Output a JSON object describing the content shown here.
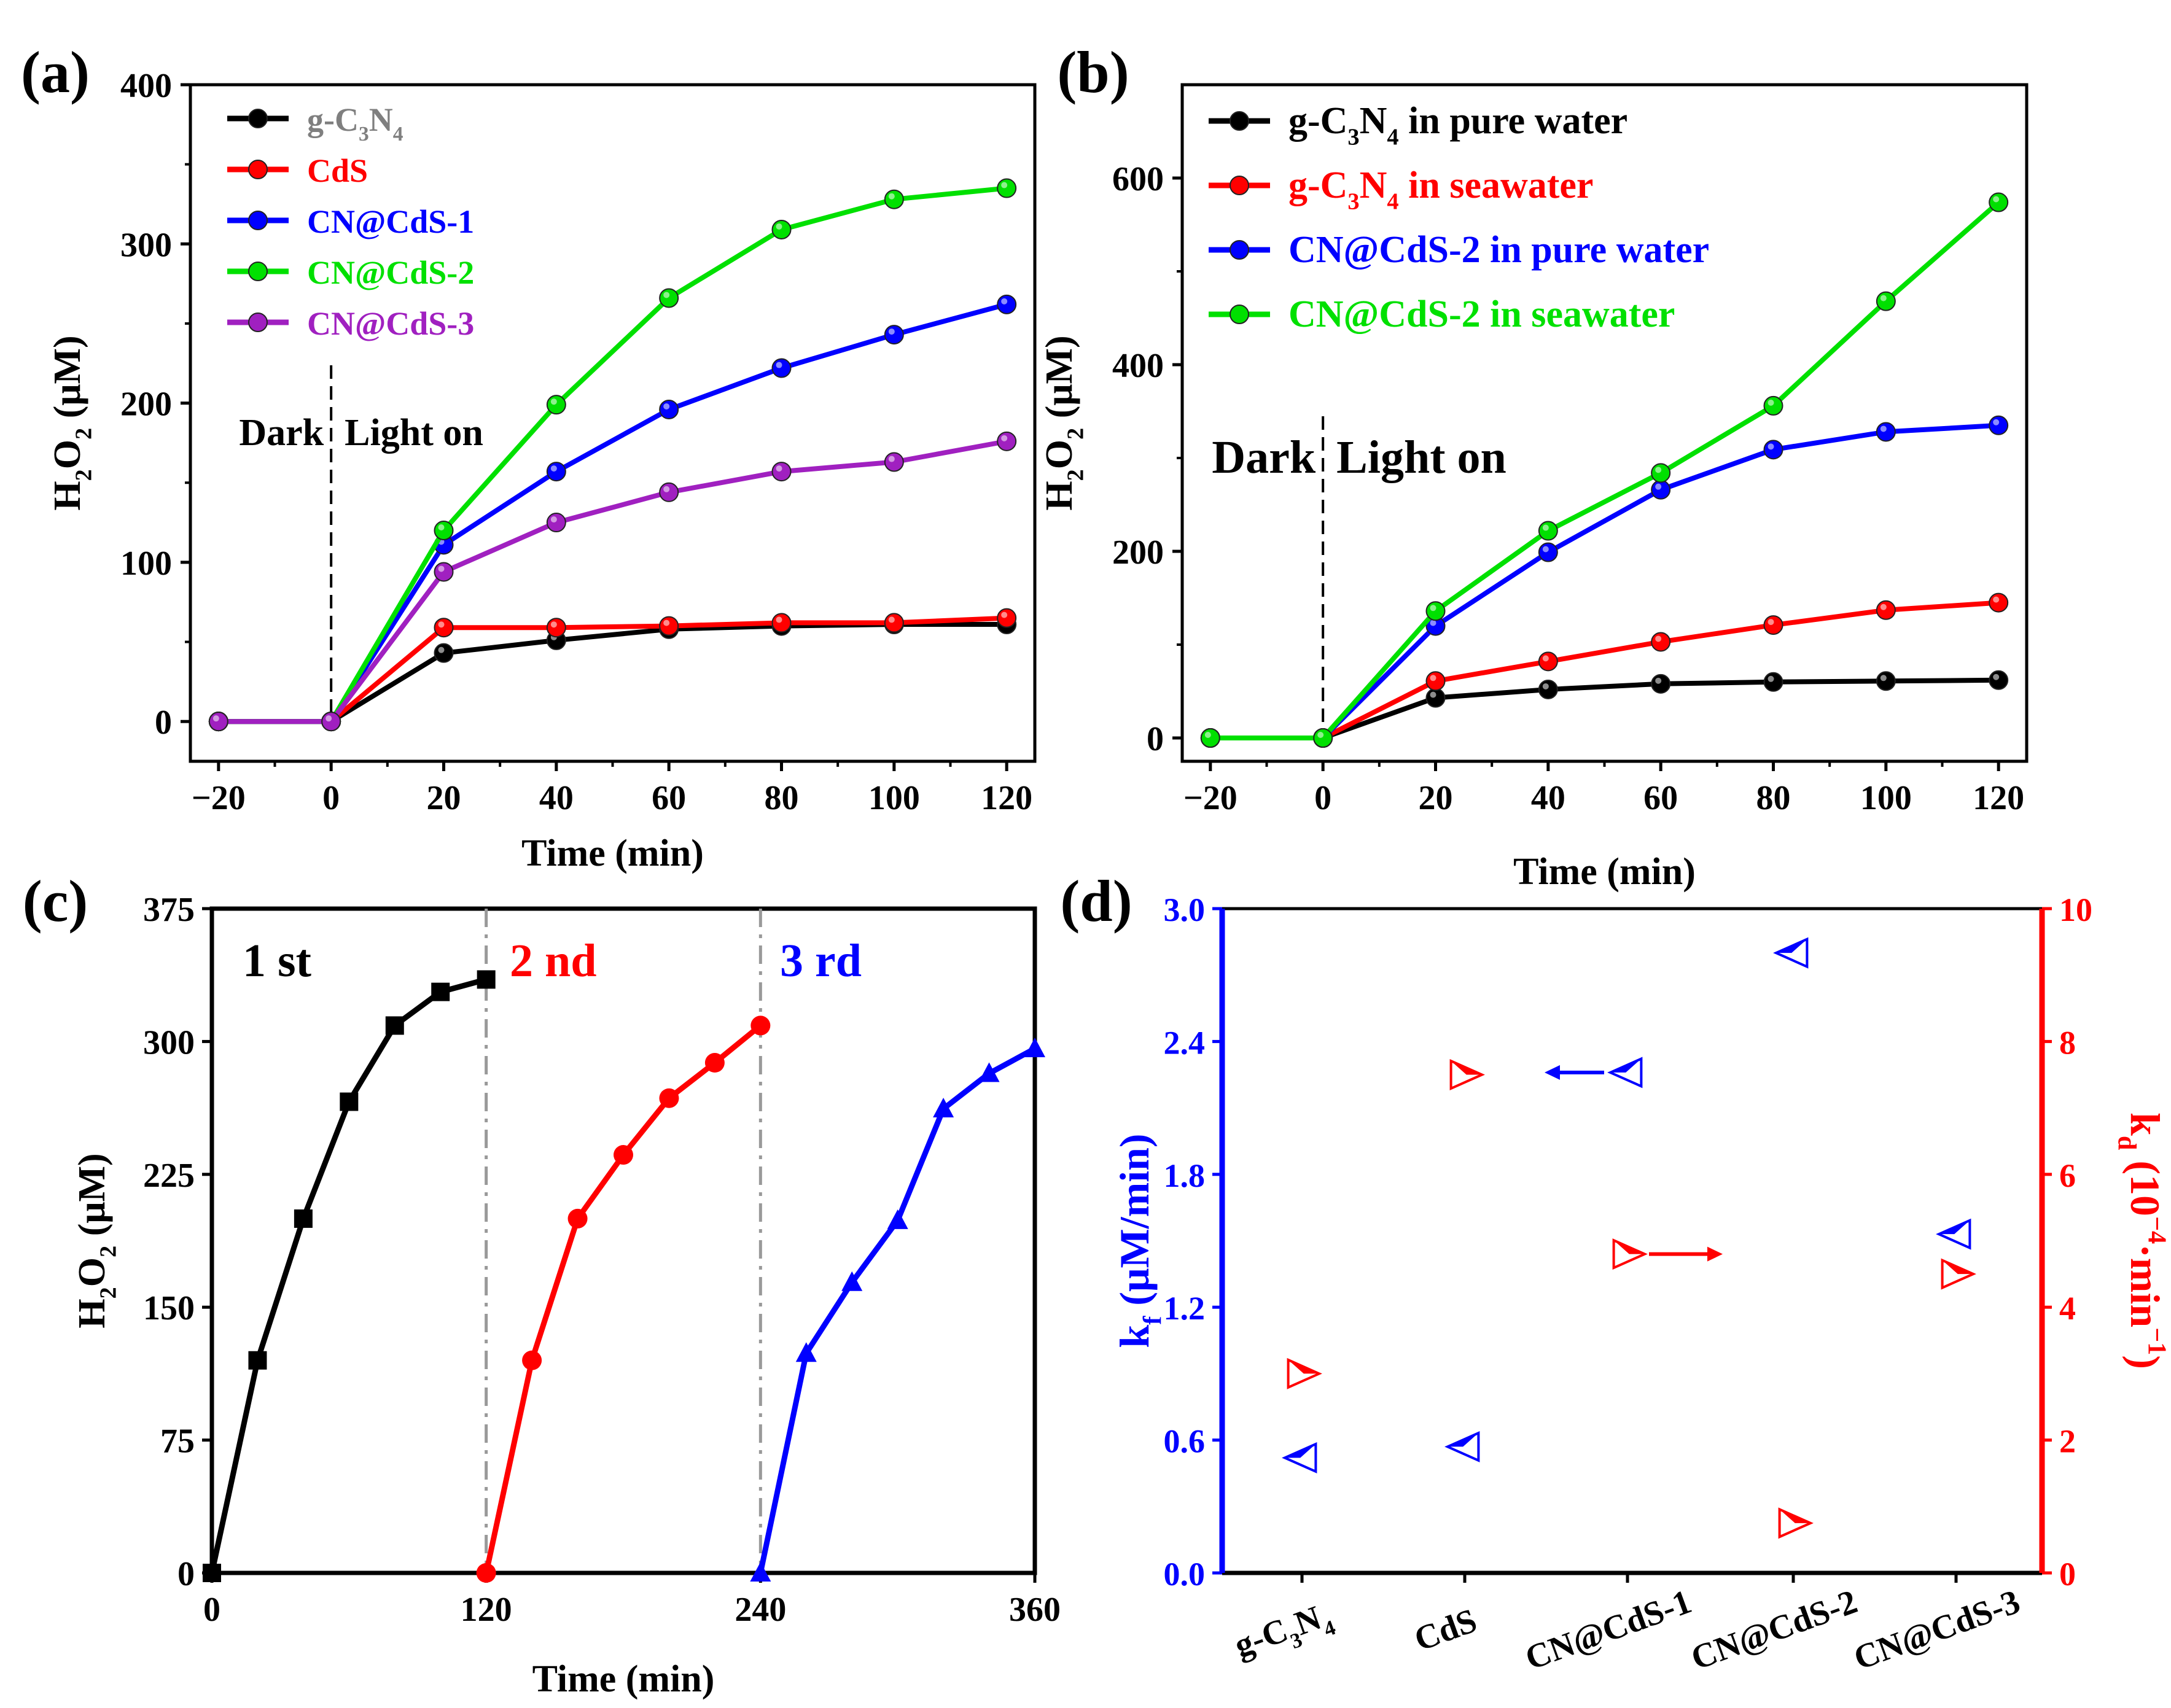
{
  "panels": [
    {
      "id": "a",
      "label": "(a)",
      "xlabel": "Time (min)",
      "ylabel": "H2O2 (μM)",
      "xlim": [
        -25,
        125
      ],
      "ylim": [
        -25,
        400
      ],
      "xticks": [
        -20,
        0,
        20,
        40,
        60,
        80,
        100,
        120
      ],
      "xtick_labels": [
        "−20",
        "0",
        "20",
        "40",
        "60",
        "80",
        "100",
        "120"
      ],
      "yticks": [
        0,
        100,
        200,
        300,
        400
      ],
      "ytick_labels": [
        "0",
        "100",
        "200",
        "300",
        "400"
      ],
      "dark_label": "Dark",
      "light_label": "Light on",
      "divider_x": 0,
      "series": [
        {
          "name": "g-C3N4",
          "color": "#000000",
          "x": [
            -20,
            0,
            20,
            40,
            60,
            80,
            100,
            120
          ],
          "y": [
            0,
            0,
            43,
            51,
            58,
            60,
            61,
            61
          ]
        },
        {
          "name": "CdS",
          "color": "#ff0000",
          "x": [
            -20,
            0,
            20,
            40,
            60,
            80,
            100,
            120
          ],
          "y": [
            0,
            0,
            59,
            59,
            60,
            62,
            62,
            65
          ]
        },
        {
          "name": "CN@CdS-1",
          "color": "#0000ff",
          "x": [
            -20,
            0,
            20,
            40,
            60,
            80,
            100,
            120
          ],
          "y": [
            0,
            0,
            111,
            157,
            196,
            222,
            243,
            262
          ]
        },
        {
          "name": "CN@CdS-2",
          "color": "#00e000",
          "x": [
            -20,
            0,
            20,
            40,
            60,
            80,
            100,
            120
          ],
          "y": [
            0,
            0,
            120,
            199,
            266,
            309,
            328,
            335
          ]
        },
        {
          "name": "CN@CdS-3",
          "color": "#a020c0",
          "x": [
            -20,
            0,
            20,
            40,
            60,
            80,
            100,
            120
          ],
          "y": [
            0,
            0,
            94,
            125,
            144,
            157,
            163,
            176
          ]
        }
      ]
    },
    {
      "id": "b",
      "label": "(b)",
      "xlabel": "Time (min)",
      "ylabel": "H2O2 (μM)",
      "xlim": [
        -25,
        125
      ],
      "ylim": [
        -25,
        700
      ],
      "xticks": [
        -20,
        0,
        20,
        40,
        60,
        80,
        100,
        120
      ],
      "xtick_labels": [
        "−20",
        "0",
        "20",
        "40",
        "60",
        "80",
        "100",
        "120"
      ],
      "yticks": [
        0,
        200,
        400,
        600
      ],
      "ytick_labels": [
        "0",
        "200",
        "400",
        "600"
      ],
      "dark_label": "Dark",
      "light_label": "Light on",
      "divider_x": 0,
      "series": [
        {
          "name": "g-C3N4 in pure water",
          "color": "#000000",
          "x": [
            -20,
            0,
            20,
            40,
            60,
            80,
            100,
            120
          ],
          "y": [
            0,
            0,
            43,
            52,
            58,
            60,
            61,
            62
          ]
        },
        {
          "name": "g-C3N4 in seawater",
          "color": "#ff0000",
          "x": [
            -20,
            0,
            20,
            40,
            60,
            80,
            100,
            120
          ],
          "y": [
            0,
            0,
            61,
            82,
            103,
            121,
            137,
            145
          ]
        },
        {
          "name": "CN@CdS-2 in pure water",
          "color": "#0000ff",
          "x": [
            -20,
            0,
            20,
            40,
            60,
            80,
            100,
            120
          ],
          "y": [
            0,
            0,
            120,
            199,
            266,
            309,
            328,
            335
          ]
        },
        {
          "name": "CN@CdS-2 in seawater",
          "color": "#00e000",
          "x": [
            -20,
            0,
            20,
            40,
            60,
            80,
            100,
            120
          ],
          "y": [
            0,
            0,
            136,
            222,
            284,
            356,
            468,
            574
          ]
        }
      ]
    },
    {
      "id": "c",
      "label": "(c)",
      "xlabel": "Time (min)",
      "ylabel": "H2O2 (μM)",
      "xlim": [
        0,
        360
      ],
      "ylim": [
        0,
        375
      ],
      "xticks": [
        0,
        120,
        240,
        360
      ],
      "xtick_labels": [
        "0",
        "120",
        "240",
        "360"
      ],
      "yticks": [
        0,
        75,
        150,
        225,
        300,
        375
      ],
      "ytick_labels": [
        "0",
        "75",
        "150",
        "225",
        "300",
        "375"
      ],
      "dividers": [
        120,
        240
      ],
      "cycle_labels": [
        "1 st",
        "2 nd",
        "3 rd"
      ],
      "series": [
        {
          "name": "1 st",
          "color": "#000000",
          "marker": "square",
          "x": [
            0,
            20,
            40,
            60,
            80,
            100,
            120
          ],
          "y": [
            0,
            120,
            200,
            266,
            309,
            328,
            335
          ]
        },
        {
          "name": "2 nd",
          "color": "#ff0000",
          "marker": "circle",
          "x": [
            120,
            140,
            160,
            180,
            200,
            220,
            240
          ],
          "y": [
            0,
            120,
            200,
            236,
            268,
            288,
            309
          ]
        },
        {
          "name": "3 rd",
          "color": "#0000ff",
          "marker": "triangle",
          "x": [
            240,
            260,
            280,
            300,
            320,
            340,
            360
          ],
          "y": [
            0,
            124,
            164,
            199,
            262,
            282,
            296
          ]
        }
      ]
    },
    {
      "id": "d",
      "label": "(d)",
      "categories": [
        "g-C3N4",
        "CdS",
        "CN@CdS-1",
        "CN@CdS-2",
        "CN@CdS-3"
      ],
      "y_left_label": "kf (μM/min)",
      "y_right_label": "kd (10⁻⁴·min⁻¹)",
      "y_left_lim": [
        0,
        3.0
      ],
      "y_right_lim": [
        0,
        10
      ],
      "y_left_ticks": [
        "0.0",
        "0.6",
        "1.2",
        "1.8",
        "2.4",
        "3.0"
      ],
      "y_right_ticks": [
        "0",
        "2",
        "4",
        "6",
        "8",
        "10"
      ],
      "kf": [
        0.52,
        0.57,
        2.26,
        2.8,
        1.53
      ],
      "kd": [
        3.0,
        7.5,
        4.8,
        0.75,
        4.5
      ],
      "kf_color": "#0000ff",
      "kd_color": "#ff0000"
    }
  ],
  "text": {
    "sub_2": "2",
    "sub_3": "3",
    "sub_4": "4",
    "sub_f": "f",
    "sub_d": "d",
    "h": "H",
    "o": "O",
    "umol": " (μM)",
    "gcn_g": "g-C",
    "gcn_n": "N",
    "pure": " in pure water",
    "sea": " in seawater",
    "kf_unit": " (μM/min)",
    "kd_unit": " (10",
    "kd_exp1": "−4",
    "kd_mid": "·min",
    "kd_exp2": "−1",
    "kd_close": ")",
    "k": "k"
  }
}
